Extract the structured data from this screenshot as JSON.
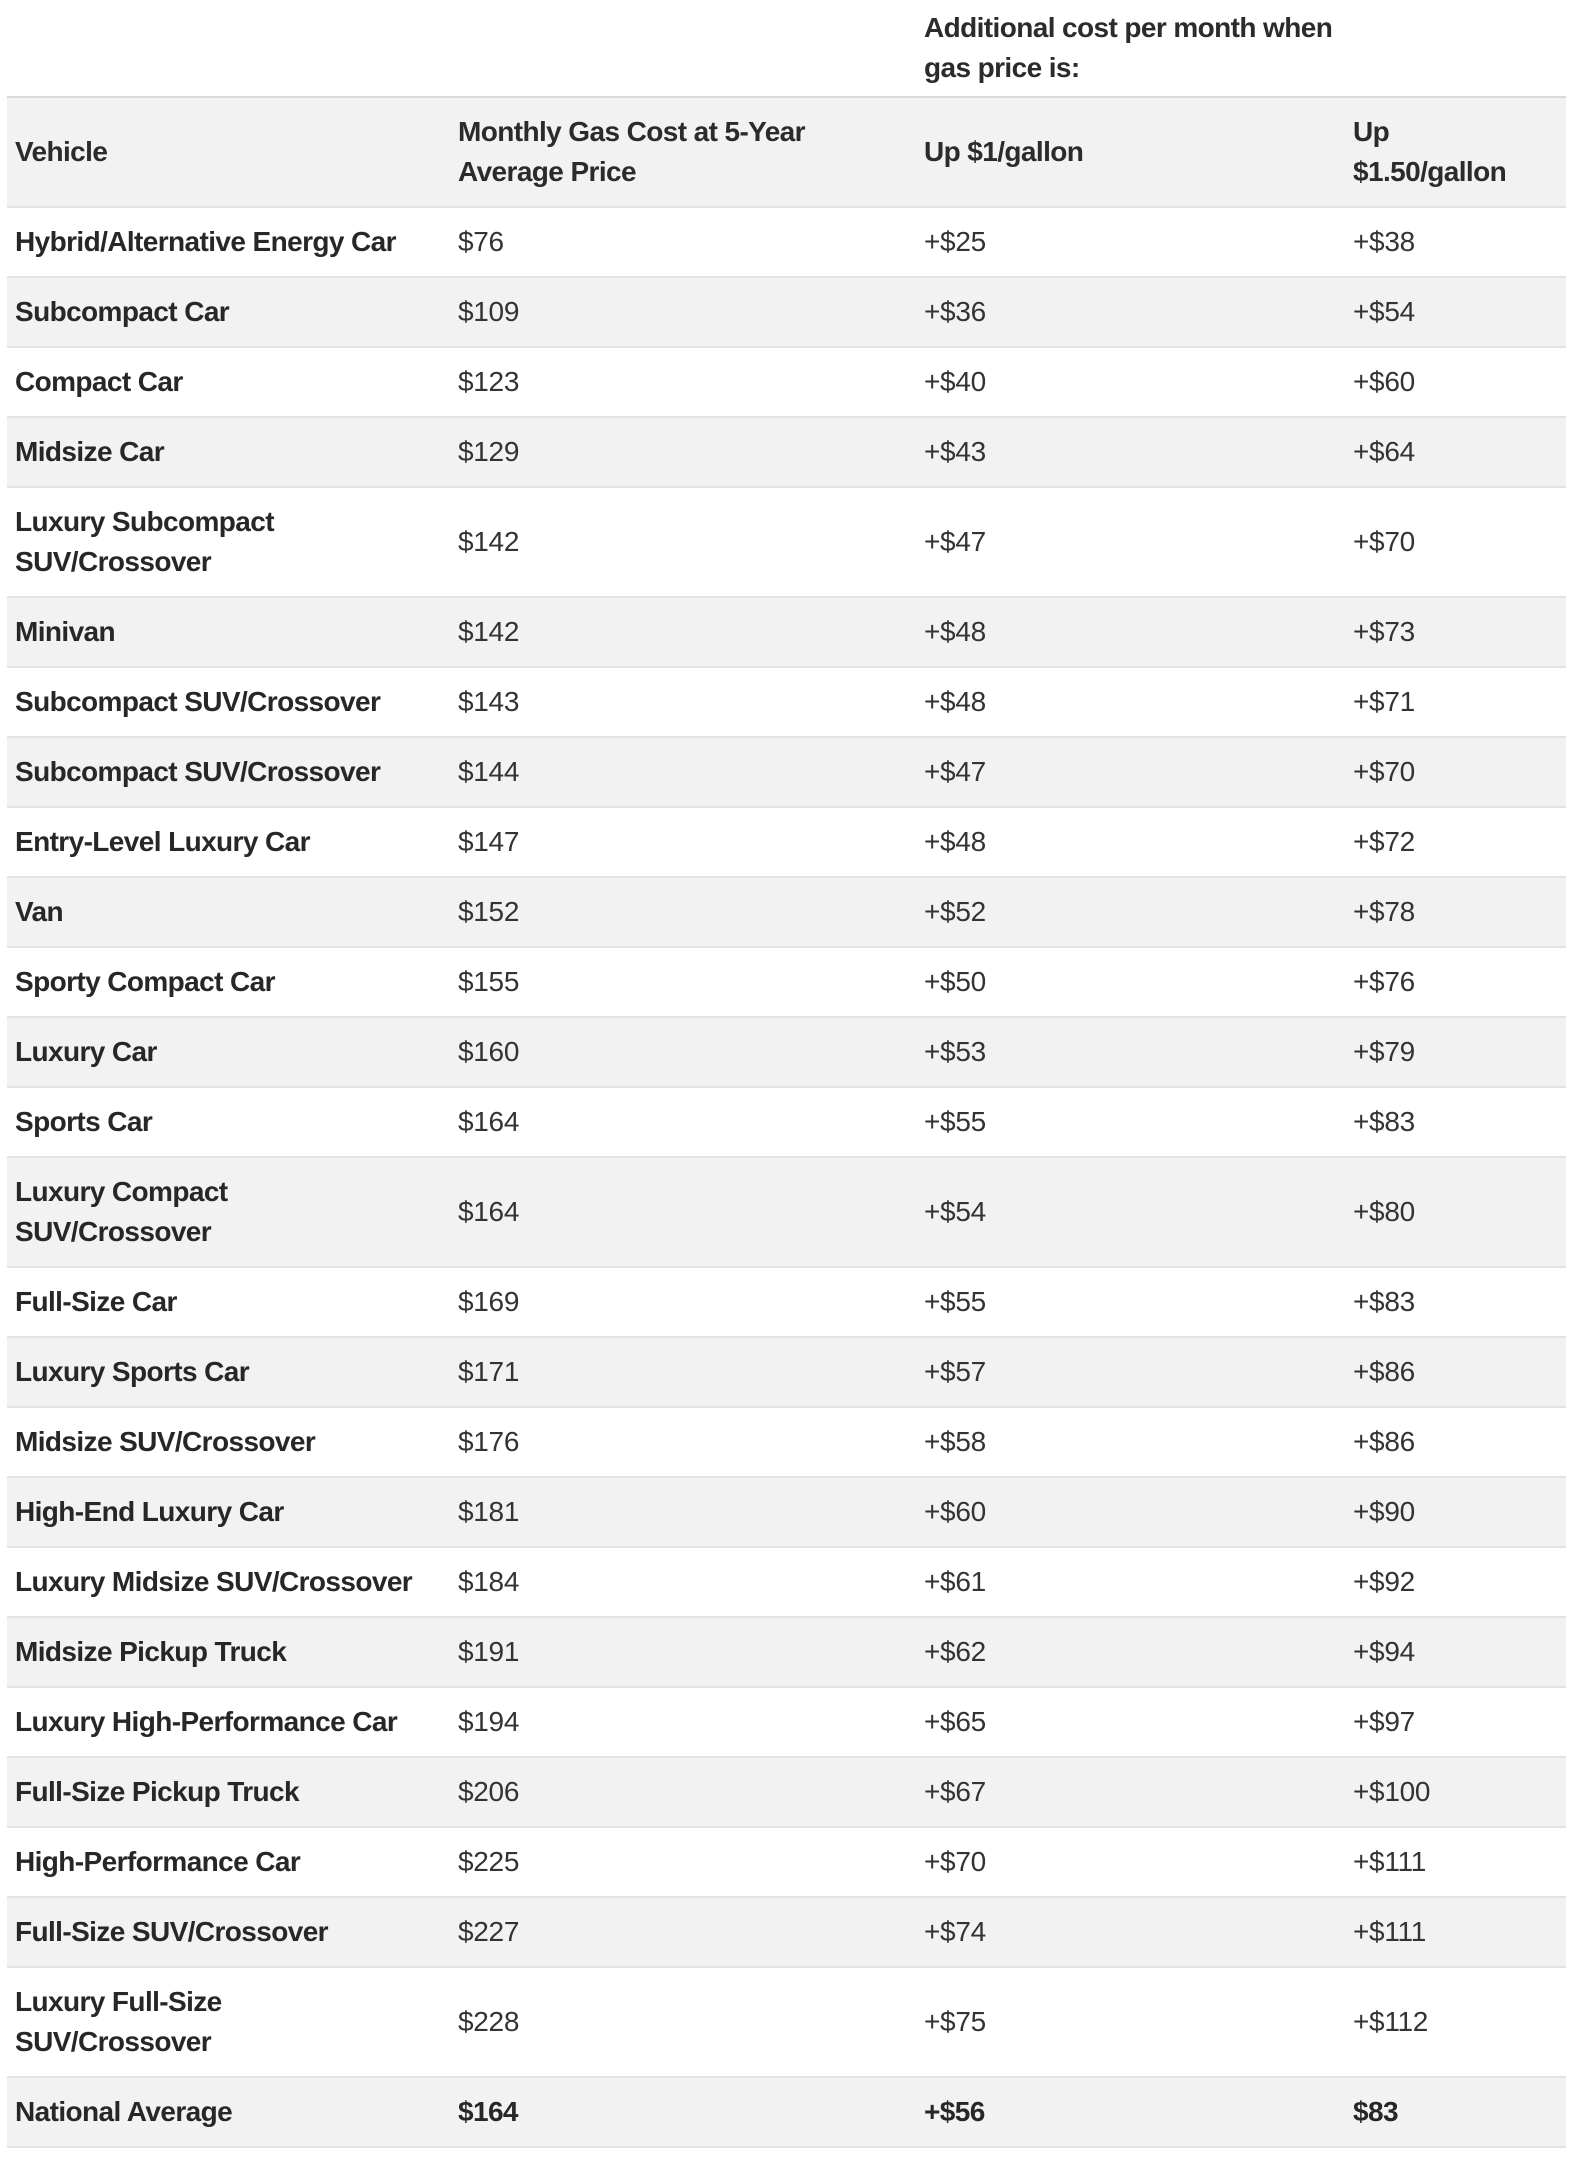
{
  "colors": {
    "stripe": "#f2f2f2",
    "header_background": "#f2f2f2",
    "row_border": "#e3e3e3",
    "text": "#2b2b2b",
    "background": "#ffffff"
  },
  "chart_data": {
    "type": "table",
    "column_group_label": "Additional cost per month when\ngas price is:",
    "column_group_spans": [
      "Up $1/gallon",
      "Up $1.50/gallon"
    ],
    "columns": [
      "Vehicle",
      "Monthly Gas Cost at 5-Year\nAverage Price",
      "Up $1/gallon",
      "Up\n$1.50/gallon"
    ],
    "rows": [
      {
        "vehicle": "Hybrid/Alternative Energy Car",
        "avg": "$76",
        "up1": "+$25",
        "up150": "+$38"
      },
      {
        "vehicle": "Subcompact Car",
        "avg": "$109",
        "up1": "+$36",
        "up150": "+$54"
      },
      {
        "vehicle": "Compact Car",
        "avg": "$123",
        "up1": "+$40",
        "up150": "+$60"
      },
      {
        "vehicle": "Midsize Car",
        "avg": "$129",
        "up1": "+$43",
        "up150": "+$64"
      },
      {
        "vehicle": "Luxury Subcompact\nSUV/Crossover",
        "avg": "$142",
        "up1": "+$47",
        "up150": "+$70"
      },
      {
        "vehicle": "Minivan",
        "avg": "$142",
        "up1": "+$48",
        "up150": "+$73"
      },
      {
        "vehicle": "Subcompact SUV/Crossover",
        "avg": "$143",
        "up1": "+$48",
        "up150": "+$71"
      },
      {
        "vehicle": "Subcompact SUV/Crossover",
        "avg": "$144",
        "up1": "+$47",
        "up150": "+$70"
      },
      {
        "vehicle": "Entry-Level Luxury Car",
        "avg": "$147",
        "up1": "+$48",
        "up150": "+$72"
      },
      {
        "vehicle": "Van",
        "avg": "$152",
        "up1": "+$52",
        "up150": "+$78"
      },
      {
        "vehicle": "Sporty Compact Car",
        "avg": "$155",
        "up1": "+$50",
        "up150": "+$76"
      },
      {
        "vehicle": "Luxury Car",
        "avg": "$160",
        "up1": "+$53",
        "up150": "+$79"
      },
      {
        "vehicle": "Sports Car",
        "avg": "$164",
        "up1": "+$55",
        "up150": "+$83"
      },
      {
        "vehicle": "Luxury Compact\nSUV/Crossover",
        "avg": "$164",
        "up1": "+$54",
        "up150": "+$80"
      },
      {
        "vehicle": "Full-Size Car",
        "avg": "$169",
        "up1": "+$55",
        "up150": "+$83"
      },
      {
        "vehicle": "Luxury Sports Car",
        "avg": "$171",
        "up1": "+$57",
        "up150": "+$86"
      },
      {
        "vehicle": "Midsize SUV/Crossover",
        "avg": "$176",
        "up1": "+$58",
        "up150": "+$86"
      },
      {
        "vehicle": "High-End Luxury Car",
        "avg": "$181",
        "up1": "+$60",
        "up150": "+$90"
      },
      {
        "vehicle": "Luxury Midsize SUV/Crossover",
        "avg": "$184",
        "up1": "+$61",
        "up150": "+$92"
      },
      {
        "vehicle": "Midsize Pickup Truck",
        "avg": "$191",
        "up1": "+$62",
        "up150": "+$94"
      },
      {
        "vehicle": "Luxury High-Performance Car",
        "avg": "$194",
        "up1": "+$65",
        "up150": "+$97"
      },
      {
        "vehicle": "Full-Size Pickup Truck",
        "avg": "$206",
        "up1": "+$67",
        "up150": "+$100"
      },
      {
        "vehicle": "High-Performance Car",
        "avg": "$225",
        "up1": "+$70",
        "up150": "+$111"
      },
      {
        "vehicle": "Full-Size SUV/Crossover",
        "avg": "$227",
        "up1": "+$74",
        "up150": "+$111"
      },
      {
        "vehicle": "Luxury Full-Size\nSUV/Crossover",
        "avg": "$228",
        "up1": "+$75",
        "up150": "+$112"
      }
    ],
    "footer_row": {
      "vehicle": "National Average",
      "avg": "$164",
      "up1": "+$56",
      "up150": "$83"
    },
    "layout": {
      "grid": "horizontal row separators only",
      "striping": "alternating white and light gray, header and footer gray"
    }
  }
}
